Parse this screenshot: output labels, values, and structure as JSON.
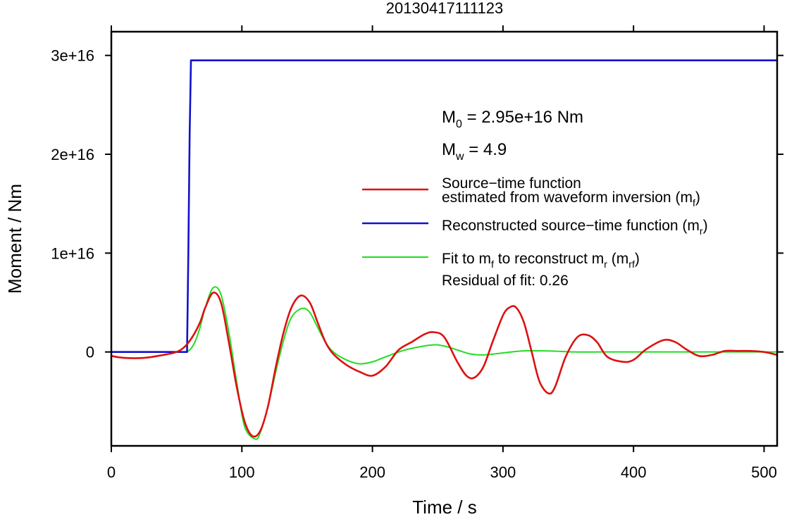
{
  "chart_data": {
    "type": "line",
    "title": "20130417111123",
    "xlabel": "Time / s",
    "ylabel": "Moment / Nm",
    "xlim": [
      0,
      510
    ],
    "ylim": [
      -9500000000000000.0,
      3.24e+16
    ],
    "x_ticks": [
      0,
      100,
      200,
      300,
      400,
      500
    ],
    "x_tick_labels": [
      "0",
      "100",
      "200",
      "300",
      "400",
      "500"
    ],
    "y_ticks": [
      0,
      1e+16,
      2e+16,
      3e+16
    ],
    "y_tick_labels": [
      "0",
      "1e+16",
      "2e+16",
      "3e+16"
    ],
    "grid": false,
    "legend_position": "right",
    "annotations": {
      "m0": {
        "symbol": "M",
        "sub": "0",
        "text": " = 2.95e+16 Nm"
      },
      "mw": {
        "symbol": "M",
        "sub": "w",
        "text": " = 4.9"
      },
      "residual": "Residual of fit: 0.26"
    },
    "legend": [
      {
        "series": "red",
        "lines": [
          [
            {
              "t": "Source−time function"
            }
          ],
          [
            {
              "t": "estimated from waveform inversion (m"
            },
            {
              "t": "f",
              "sub": true
            },
            {
              "t": ")"
            }
          ]
        ]
      },
      {
        "series": "blue",
        "lines": [
          [
            {
              "t": "Reconstructed source−time function (m"
            },
            {
              "t": "r",
              "sub": true
            },
            {
              "t": ")"
            }
          ]
        ]
      },
      {
        "series": "green",
        "lines": [
          [
            {
              "t": "Fit to m"
            },
            {
              "t": "f",
              "sub": true
            },
            {
              "t": " to reconstruct m"
            },
            {
              "t": "r",
              "sub": true
            },
            {
              "t": " (m"
            },
            {
              "t": "rf",
              "sub": true
            },
            {
              "t": ")"
            }
          ]
        ]
      }
    ],
    "series": [
      {
        "id": "red",
        "color": "#dd1111",
        "x": [
          0,
          10,
          25,
          40,
          50,
          56,
          62,
          68,
          72,
          78,
          84,
          90,
          96,
          102,
          108,
          114,
          120,
          126,
          132,
          138,
          145,
          152,
          158,
          164,
          170,
          180,
          190,
          200,
          210,
          220,
          230,
          240,
          247,
          255,
          265,
          272,
          278,
          285,
          292,
          300,
          305,
          310,
          316,
          322,
          328,
          335,
          340,
          348,
          357,
          365,
          372,
          380,
          392,
          400,
          410,
          423,
          432,
          440,
          450,
          460,
          470,
          480,
          490,
          500,
          510
        ],
        "y": [
          -400000000000000.0,
          -600000000000000.0,
          -600000000000000.0,
          -300000000000000.0,
          0,
          500000000000000.0,
          1500000000000000.0,
          3000000000000000.0,
          4500000000000000.0,
          6000000000000000.0,
          5000000000000000.0,
          1000000000000000.0,
          -3500000000000000.0,
          -7000000000000000.0,
          -8500000000000000.0,
          -8000000000000000.0,
          -5500000000000000.0,
          -1500000000000000.0,
          2000000000000000.0,
          4500000000000000.0,
          5700000000000000.0,
          5000000000000000.0,
          3000000000000000.0,
          1000000000000000.0,
          -200000000000000.0,
          -1300000000000000.0,
          -2000000000000000.0,
          -2400000000000000.0,
          -1500000000000000.0,
          200000000000000.0,
          1000000000000000.0,
          1800000000000000.0,
          2000000000000000.0,
          1500000000000000.0,
          -1000000000000000.0,
          -2400000000000000.0,
          -2600000000000000.0,
          -1500000000000000.0,
          1000000000000000.0,
          3700000000000000.0,
          4500000000000000.0,
          4500000000000000.0,
          3000000000000000.0,
          0.0,
          -3000000000000000.0,
          -4200000000000000.0,
          -3500000000000000.0,
          -500000000000000.0,
          1500000000000000.0,
          1700000000000000.0,
          1000000000000000.0,
          -500000000000000.0,
          -1000000000000000.0,
          -800000000000000.0,
          300000000000000.0,
          1200000000000000.0,
          1000000000000000.0,
          300000000000000.0,
          -400000000000000.0,
          -300000000000000.0,
          100000000000000.0,
          100000000000000.0,
          100000000000000.0,
          0,
          -300000000000000.0
        ]
      },
      {
        "id": "blue",
        "color": "#1111cc",
        "x": [
          0,
          58,
          59,
          60,
          61,
          510
        ],
        "y": [
          0,
          0,
          1e+16,
          2.2e+16,
          2.95e+16,
          2.95e+16
        ]
      },
      {
        "id": "green",
        "color": "#22dd22",
        "x": [
          0,
          50,
          56,
          60,
          64,
          68,
          72,
          78,
          84,
          90,
          96,
          102,
          110,
          114,
          120,
          126,
          132,
          138,
          146,
          152,
          158,
          164,
          170,
          180,
          190,
          200,
          210,
          225,
          245,
          255,
          265,
          275,
          285,
          300,
          315,
          335,
          355,
          375,
          395,
          420,
          450,
          480,
          510
        ],
        "y": [
          0,
          0,
          0,
          200000000000000.0,
          1000000000000000.0,
          2500000000000000.0,
          4500000000000000.0,
          6500000000000000.0,
          5800000000000000.0,
          2000000000000000.0,
          -3000000000000000.0,
          -7500000000000000.0,
          -8800000000000000.0,
          -8200000000000000.0,
          -5500000000000000.0,
          -2000000000000000.0,
          1200000000000000.0,
          3500000000000000.0,
          4400000000000000.0,
          4000000000000000.0,
          2500000000000000.0,
          1000000000000000.0,
          0,
          -800000000000000.0,
          -1200000000000000.0,
          -1000000000000000.0,
          -500000000000000.0,
          200000000000000.0,
          700000000000000.0,
          600000000000000.0,
          200000000000000.0,
          -200000000000000.0,
          -300000000000000.0,
          -100000000000000.0,
          100000000000000.0,
          100000000000000.0,
          0,
          0,
          0,
          0,
          0,
          0,
          0
        ]
      }
    ]
  }
}
